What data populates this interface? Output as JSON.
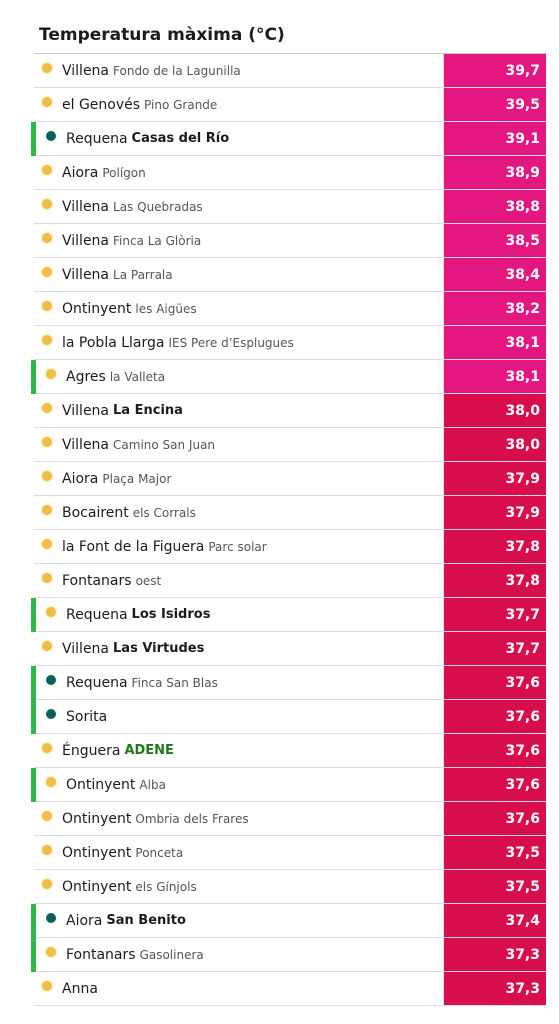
{
  "table": {
    "title": "Temperatura màxima (°C)",
    "colors": {
      "hot": "#e3177f",
      "warm": "#d80e4c",
      "sun_icon": "#f1bd43",
      "teal_icon": "#0a5f5a",
      "marker": "#2db84a"
    },
    "rows": [
      {
        "place": "Villena",
        "sub": "Fondo de la Lagunilla",
        "sub_style": "normal",
        "value": "39,7",
        "icon": "sun-icon",
        "marked": false,
        "band": "hot"
      },
      {
        "place": "el Genovés",
        "sub": "Pino Grande",
        "sub_style": "normal",
        "value": "39,5",
        "icon": "sun-icon",
        "marked": false,
        "band": "hot"
      },
      {
        "place": "Requena",
        "sub": "Casas del Río",
        "sub_style": "strong",
        "value": "39,1",
        "icon": "teal-dot-icon",
        "marked": true,
        "band": "hot"
      },
      {
        "place": "Aiora",
        "sub": "Polígon",
        "sub_style": "normal",
        "value": "38,9",
        "icon": "sun-icon",
        "marked": false,
        "band": "hot"
      },
      {
        "place": "Villena",
        "sub": "Las Quebradas",
        "sub_style": "normal",
        "value": "38,8",
        "icon": "sun-icon",
        "marked": false,
        "band": "hot"
      },
      {
        "place": "Villena",
        "sub": "Finca La Glòria",
        "sub_style": "normal",
        "value": "38,5",
        "icon": "sun-icon",
        "marked": false,
        "band": "hot"
      },
      {
        "place": "Villena",
        "sub": "La Parrala",
        "sub_style": "normal",
        "value": "38,4",
        "icon": "sun-icon",
        "marked": false,
        "band": "hot"
      },
      {
        "place": "Ontinyent",
        "sub": "les Aigües",
        "sub_style": "normal",
        "value": "38,2",
        "icon": "sun-icon",
        "marked": false,
        "band": "hot"
      },
      {
        "place": "la Pobla Llarga",
        "sub": "IES Pere d’Esplugues",
        "sub_style": "normal",
        "value": "38,1",
        "icon": "sun-icon",
        "marked": false,
        "band": "hot"
      },
      {
        "place": "Agres",
        "sub": "la Valleta",
        "sub_style": "normal",
        "value": "38,1",
        "icon": "sun-icon",
        "marked": true,
        "band": "hot"
      },
      {
        "place": "Villena",
        "sub": "La Encina",
        "sub_style": "strong",
        "value": "38,0",
        "icon": "sun-icon",
        "marked": false,
        "band": "warm"
      },
      {
        "place": "Villena",
        "sub": "Camino San Juan",
        "sub_style": "normal",
        "value": "38,0",
        "icon": "sun-icon",
        "marked": false,
        "band": "warm"
      },
      {
        "place": "Aiora",
        "sub": "Plaça Major",
        "sub_style": "normal",
        "value": "37,9",
        "icon": "sun-icon",
        "marked": false,
        "band": "warm"
      },
      {
        "place": "Bocairent",
        "sub": "els Corrals",
        "sub_style": "normal",
        "value": "37,9",
        "icon": "sun-icon",
        "marked": false,
        "band": "warm"
      },
      {
        "place": "la Font de la Figuera",
        "sub": "Parc solar",
        "sub_style": "normal",
        "value": "37,8",
        "icon": "sun-icon",
        "marked": false,
        "band": "warm"
      },
      {
        "place": "Fontanars",
        "sub": "oest",
        "sub_style": "normal",
        "value": "37,8",
        "icon": "sun-icon",
        "marked": false,
        "band": "warm"
      },
      {
        "place": "Requena",
        "sub": "Los Isidros",
        "sub_style": "strong",
        "value": "37,7",
        "icon": "sun-icon",
        "marked": true,
        "band": "warm"
      },
      {
        "place": "Villena",
        "sub": "Las Virtudes",
        "sub_style": "strong",
        "value": "37,7",
        "icon": "sun-icon",
        "marked": false,
        "band": "warm"
      },
      {
        "place": "Requena",
        "sub": "Finca San Blas",
        "sub_style": "normal",
        "value": "37,6",
        "icon": "teal-dot-icon",
        "marked": true,
        "band": "warm"
      },
      {
        "place": "Sorita",
        "sub": "",
        "sub_style": "normal",
        "value": "37,6",
        "icon": "teal-dot-icon",
        "marked": true,
        "band": "warm"
      },
      {
        "place": "Énguera",
        "sub": "ADENE",
        "sub_style": "green",
        "value": "37,6",
        "icon": "sun-icon",
        "marked": false,
        "band": "warm"
      },
      {
        "place": "Ontinyent",
        "sub": "Alba",
        "sub_style": "normal",
        "value": "37,6",
        "icon": "sun-icon",
        "marked": true,
        "band": "warm"
      },
      {
        "place": "Ontinyent",
        "sub": "Ombria dels Frares",
        "sub_style": "normal",
        "value": "37,6",
        "icon": "sun-icon",
        "marked": false,
        "band": "warm"
      },
      {
        "place": "Ontinyent",
        "sub": "Ponceta",
        "sub_style": "normal",
        "value": "37,5",
        "icon": "sun-icon",
        "marked": false,
        "band": "warm"
      },
      {
        "place": "Ontinyent",
        "sub": "els Gínjols",
        "sub_style": "normal",
        "value": "37,5",
        "icon": "sun-icon",
        "marked": false,
        "band": "warm"
      },
      {
        "place": "Aiora",
        "sub": "San Benito",
        "sub_style": "strong",
        "value": "37,4",
        "icon": "teal-dot-icon",
        "marked": true,
        "band": "warm"
      },
      {
        "place": "Fontanars",
        "sub": "Gasolinera",
        "sub_style": "normal",
        "value": "37,3",
        "icon": "sun-icon",
        "marked": true,
        "band": "warm"
      },
      {
        "place": "Anna",
        "sub": "",
        "sub_style": "normal",
        "value": "37,3",
        "icon": "sun-icon",
        "marked": false,
        "band": "warm"
      }
    ]
  }
}
